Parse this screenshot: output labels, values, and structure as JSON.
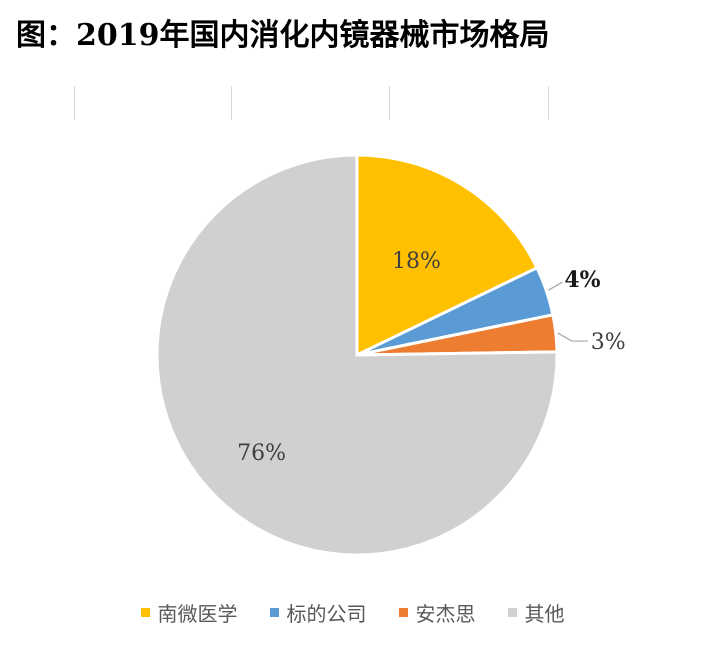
{
  "title": "图：2019年国内消化内镜器械市场格局",
  "chart_data": {
    "type": "pie",
    "title": "图：2019年国内消化内镜器械市场格局",
    "categories": [
      "南微医学",
      "标的公司",
      "安杰思",
      "其他"
    ],
    "values": [
      18,
      4,
      3,
      76
    ],
    "data_labels": [
      "18%",
      "4%",
      "3%",
      "76%"
    ],
    "colors": [
      "#FFC000",
      "#5B9BD5",
      "#ED7D31",
      "#D0D0D0"
    ],
    "legend_position": "bottom",
    "start_angle": "12 o'clock",
    "direction": "clockwise"
  }
}
